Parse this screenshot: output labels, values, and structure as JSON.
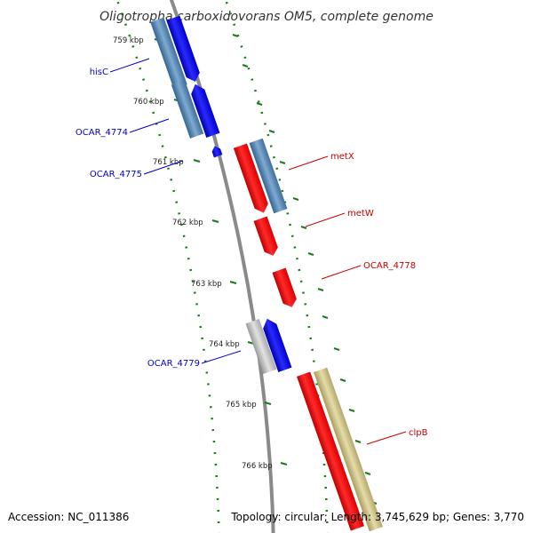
{
  "title": "Oligotropha carboxidovorans OM5, complete genome",
  "accession_text": "Accession: NC_011386",
  "summary_text": "Topology: circular; Length: 3,745,629 bp; Genes: 3,770",
  "colors": {
    "backbone": "#8a8a8a",
    "tick": "#1a7a1a",
    "forward_cds": "#0000ee",
    "reverse_cds": "#ee0000",
    "forward_label": "#0000cc",
    "reverse_label": "#cc0000",
    "orthologous_blue": "#4a7fb0",
    "orthologous_gray": "#b9b9b9",
    "orthologous_khaki": "#c9bf84"
  },
  "tick_labels": [
    "759 kbp",
    "760 kbp",
    "761 kbp",
    "762 kbp",
    "763 kbp",
    "764 kbp",
    "765 kbp",
    "766 kbp"
  ],
  "genes": {
    "forward": [
      {
        "label": "hisC"
      },
      {
        "label": "OCAR_4774"
      },
      {
        "label": "OCAR_4775"
      },
      {
        "label": "OCAR_4779"
      }
    ],
    "reverse": [
      {
        "label": "metX"
      },
      {
        "label": "metW"
      },
      {
        "label": "OCAR_4778"
      },
      {
        "label": "clpB"
      }
    ]
  }
}
